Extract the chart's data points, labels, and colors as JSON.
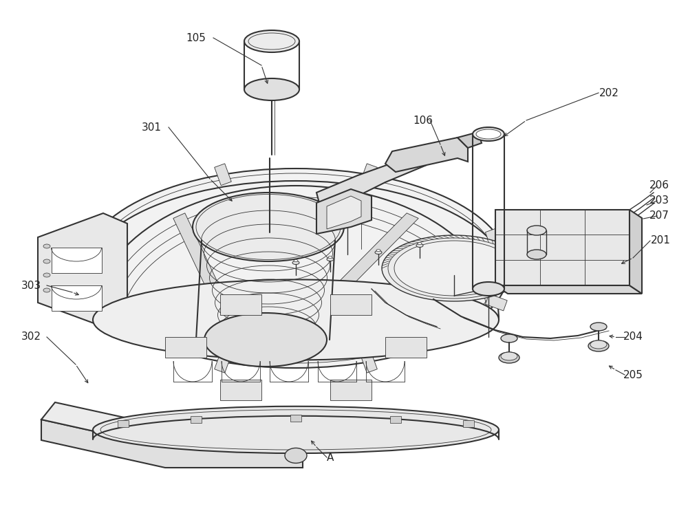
{
  "bg_color": "#ffffff",
  "line_color": "#333333",
  "label_color": "#222222",
  "fig_width": 10.0,
  "fig_height": 7.43,
  "dpi": 100
}
